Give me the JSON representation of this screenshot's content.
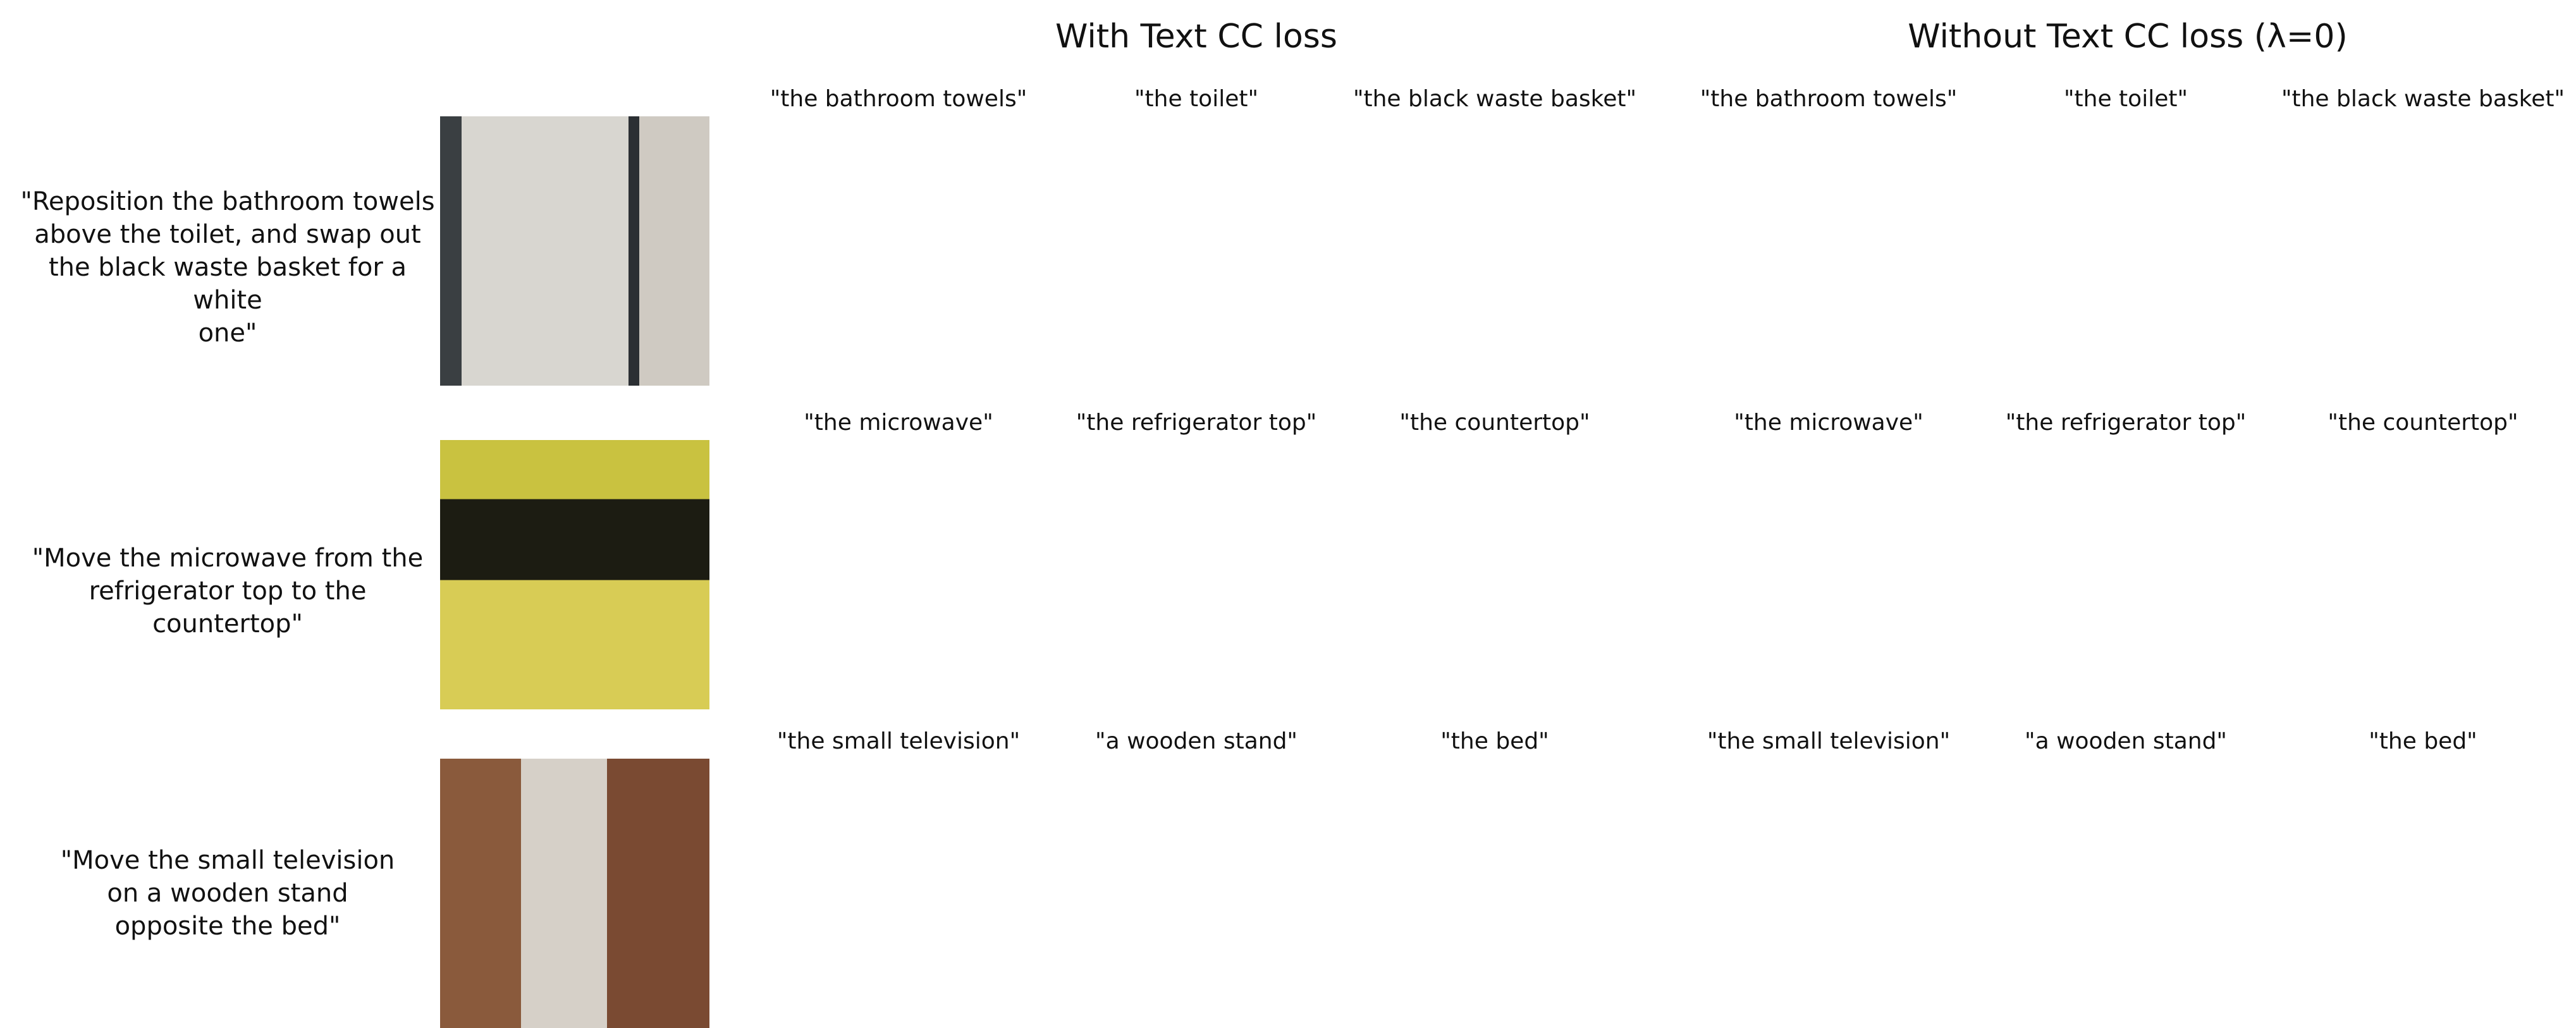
{
  "header": {
    "with": "With Text CC loss",
    "without": "Without Text CC loss (λ=0)"
  },
  "rows": [
    {
      "prompt": [
        "\"Reposition the bathroom towels",
        "above the toilet, and swap out",
        "the black waste basket for a white",
        "one\""
      ],
      "phrases": [
        "\"the bathroom towels\"",
        "\"the toilet\"",
        "\"the black waste basket\""
      ]
    },
    {
      "prompt": [
        "\"Move the microwave from the",
        "refrigerator top to the countertop\""
      ],
      "phrases": [
        "\"the microwave\"",
        "\"the refrigerator top\"",
        "\"the countertop\""
      ]
    },
    {
      "prompt": [
        "\"Move the small television",
        "on a wooden stand",
        "opposite the bed\""
      ],
      "phrases": [
        "\"the small television\"",
        "\"a wooden stand\"",
        "\"the bed\""
      ]
    }
  ]
}
